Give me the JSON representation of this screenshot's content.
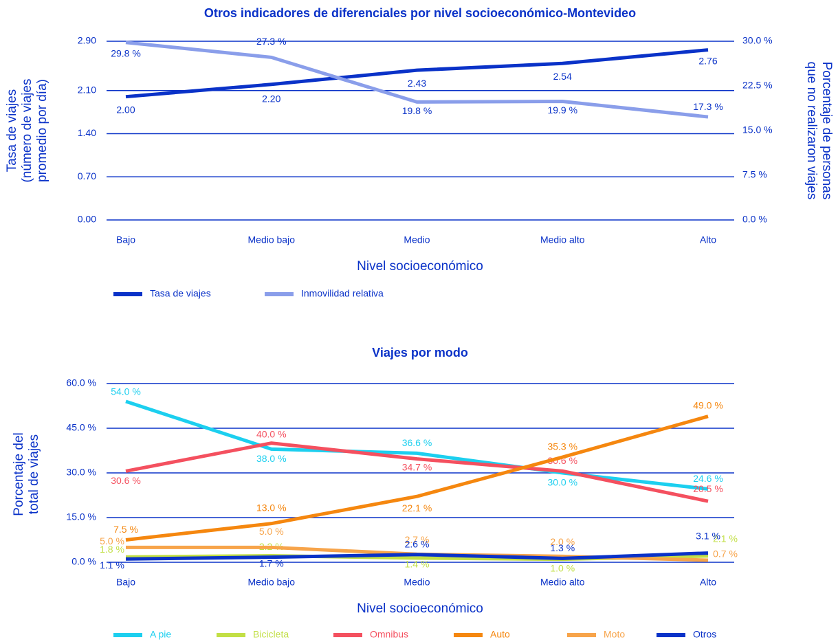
{
  "chart_data": [
    {
      "type": "line",
      "title": "Otros indicadores de diferenciales por nivel socioeconómico-Montevideo",
      "xlabel": "Nivel socioeconómico",
      "ylabel": [
        "Tasa de viajes",
        "(número de viajes",
        "promedio por día)"
      ],
      "y2label": [
        "Porcentaje de personas",
        "que no realizaron viajes"
      ],
      "categories": [
        "Bajo",
        "Medio bajo",
        "Medio",
        "Medio alto",
        "Alto"
      ],
      "ylim": [
        0,
        2.9
      ],
      "yticks": [
        {
          "value": 0,
          "label": "0.00"
        },
        {
          "value": 0.7,
          "label": "0.70"
        },
        {
          "value": 1.4,
          "label": "1.40"
        },
        {
          "value": 2.1,
          "label": "2.10"
        },
        {
          "value": 2.9,
          "label": "2.90"
        }
      ],
      "y2lim": [
        0,
        30
      ],
      "y2ticks": [
        {
          "value": 0,
          "label": "0.0 %"
        },
        {
          "value": 7.5,
          "label": "7.5 %"
        },
        {
          "value": 15,
          "label": "15.0 %"
        },
        {
          "value": 22.5,
          "label": "22.5 %"
        },
        {
          "value": 30,
          "label": "30.0 %"
        }
      ],
      "grid": true,
      "series": [
        {
          "name": "Tasa de viajes",
          "color": "#0a32c8",
          "values": [
            2.0,
            2.2,
            2.43,
            2.54,
            2.76
          ],
          "value_labels": [
            "2.00",
            "2.20",
            "2.43",
            "2.54",
            "2.76"
          ]
        },
        {
          "name": "Inmovilidad relativa",
          "color": "#8a9eea",
          "axis": "y2",
          "values": [
            29.8,
            27.3,
            19.8,
            19.9,
            17.3
          ],
          "value_labels": [
            "29.8 %",
            "27.3 %",
            "19.8 %",
            "19.9 %",
            "17.3 %"
          ]
        }
      ]
    },
    {
      "type": "line",
      "title": "Viajes por modo",
      "xlabel": "Nivel socioeconómico",
      "ylabel": [
        "Porcentaje del",
        "total de viajes"
      ],
      "categories": [
        "Bajo",
        "Medio bajo",
        "Medio",
        "Medio alto",
        "Alto"
      ],
      "ylim": [
        0,
        60
      ],
      "yticks": [
        {
          "value": 0,
          "label": "0.0 %"
        },
        {
          "value": 15,
          "label": "15.0 %"
        },
        {
          "value": 30,
          "label": "30.0 %"
        },
        {
          "value": 45,
          "label": "45.0 %"
        },
        {
          "value": 60,
          "label": "60.0 %"
        }
      ],
      "grid": true,
      "series": [
        {
          "name": "A pie",
          "color": "#1ccfef",
          "values": [
            54.0,
            38.0,
            36.6,
            30.0,
            24.6
          ],
          "value_labels": [
            "54.0 %",
            "38.0 %",
            "36.6 %",
            "30.0 %",
            "24.6 %"
          ]
        },
        {
          "name": "Bicicleta",
          "color": "#c2df45",
          "values": [
            1.8,
            2.2,
            1.4,
            1.0,
            2.1
          ],
          "value_labels": [
            "1.8 %",
            "2.2 %",
            "1.4 %",
            "1.0 %",
            "2.1 %"
          ]
        },
        {
          "name": "Omnibus",
          "color": "#f4505f",
          "values": [
            30.6,
            40.0,
            34.7,
            30.6,
            20.5
          ],
          "value_labels": [
            "30.6 %",
            "40.0 %",
            "34.7 %",
            "30.6 %",
            "20.5 %"
          ]
        },
        {
          "name": "Auto",
          "color": "#f5870f",
          "values": [
            7.5,
            13.0,
            22.1,
            35.3,
            49.0
          ],
          "value_labels": [
            "7.5 %",
            "13.0 %",
            "22.1 %",
            "35.3 %",
            "49.0 %"
          ]
        },
        {
          "name": "Moto",
          "color": "#f7a44a",
          "values": [
            5.0,
            5.0,
            2.7,
            2.0,
            0.7
          ],
          "value_labels": [
            "5.0 %",
            "5.0 %",
            "2.7 %",
            "2.0 %",
            "0.7 %"
          ]
        },
        {
          "name": "Otros",
          "color": "#0a32c8",
          "values": [
            1.1,
            1.7,
            2.6,
            1.3,
            3.1
          ],
          "value_labels": [
            "1.1 %",
            "1.7 %",
            "2.6 %",
            "1.3 %",
            "3.1 %"
          ]
        }
      ]
    }
  ]
}
